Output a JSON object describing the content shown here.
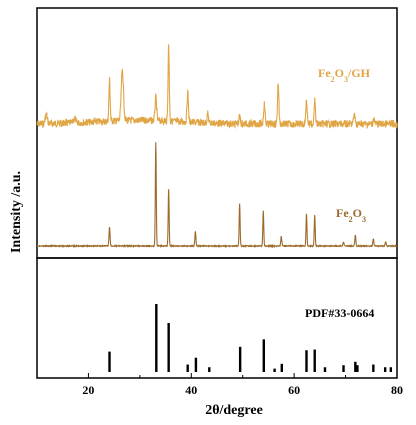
{
  "chart_data": {
    "type": "line",
    "xlabel": "2θ/degree",
    "ylabel": "Intensity /a.u.",
    "xlim": [
      10,
      80
    ],
    "xticks": [
      "20",
      "40",
      "60",
      "80"
    ],
    "grid": false,
    "series": [
      {
        "name": "Fe2O3/GH",
        "label_main": "Fe",
        "label_sub1": "2",
        "label_mid": "O",
        "label_sub2": "3",
        "label_tail": "/GH",
        "color": "#E0A545",
        "baseline": 0.04,
        "noise": 0.9,
        "peaks": [
          {
            "x": 11.8,
            "h": 0.1,
            "w": 0.2
          },
          {
            "x": 17.3,
            "h": 0.05,
            "w": 0.2
          },
          {
            "x": 24.1,
            "h": 0.46,
            "w": 0.12
          },
          {
            "x": 26.6,
            "h": 0.56,
            "w": 0.22
          },
          {
            "x": 33.1,
            "h": 0.26,
            "w": 0.15
          },
          {
            "x": 35.6,
            "h": 0.84,
            "w": 0.12
          },
          {
            "x": 39.3,
            "h": 0.33,
            "w": 0.14
          },
          {
            "x": 43.2,
            "h": 0.1,
            "w": 0.14
          },
          {
            "x": 49.4,
            "h": 0.08,
            "w": 0.14
          },
          {
            "x": 54.2,
            "h": 0.22,
            "w": 0.14
          },
          {
            "x": 56.9,
            "h": 0.46,
            "w": 0.13
          },
          {
            "x": 62.4,
            "h": 0.26,
            "w": 0.14
          },
          {
            "x": 64.0,
            "h": 0.27,
            "w": 0.13
          },
          {
            "x": 71.7,
            "h": 0.11,
            "w": 0.14
          },
          {
            "x": 75.5,
            "h": 0.06,
            "w": 0.14
          }
        ]
      },
      {
        "name": "Fe2O3",
        "label_main": "Fe",
        "label_sub1": "2",
        "label_mid": "O",
        "label_sub2": "3",
        "label_tail": "",
        "color": "#9B6A2A",
        "baseline": 0.0,
        "noise": 0.35,
        "peaks": [
          {
            "x": 24.1,
            "h": 0.18,
            "w": 0.1
          },
          {
            "x": 33.1,
            "h": 1.0,
            "w": 0.09
          },
          {
            "x": 35.6,
            "h": 0.55,
            "w": 0.09
          },
          {
            "x": 40.8,
            "h": 0.14,
            "w": 0.1
          },
          {
            "x": 49.4,
            "h": 0.41,
            "w": 0.09
          },
          {
            "x": 54.0,
            "h": 0.34,
            "w": 0.09
          },
          {
            "x": 57.5,
            "h": 0.09,
            "w": 0.1
          },
          {
            "x": 62.4,
            "h": 0.31,
            "w": 0.09
          },
          {
            "x": 64.0,
            "h": 0.3,
            "w": 0.09
          },
          {
            "x": 69.6,
            "h": 0.04,
            "w": 0.1
          },
          {
            "x": 71.9,
            "h": 0.11,
            "w": 0.1
          },
          {
            "x": 75.4,
            "h": 0.07,
            "w": 0.1
          },
          {
            "x": 77.8,
            "h": 0.04,
            "w": 0.1
          }
        ]
      }
    ],
    "reference": {
      "name": "PDF#33-0664",
      "color": "#000000",
      "sticks": [
        {
          "x": 24.1,
          "h": 0.3
        },
        {
          "x": 33.2,
          "h": 1.0
        },
        {
          "x": 35.6,
          "h": 0.72
        },
        {
          "x": 39.3,
          "h": 0.11
        },
        {
          "x": 40.9,
          "h": 0.21
        },
        {
          "x": 43.5,
          "h": 0.07
        },
        {
          "x": 49.5,
          "h": 0.37
        },
        {
          "x": 54.1,
          "h": 0.48
        },
        {
          "x": 56.2,
          "h": 0.05
        },
        {
          "x": 57.6,
          "h": 0.12
        },
        {
          "x": 62.4,
          "h": 0.32
        },
        {
          "x": 64.0,
          "h": 0.33
        },
        {
          "x": 66.0,
          "h": 0.07
        },
        {
          "x": 69.6,
          "h": 0.1
        },
        {
          "x": 71.9,
          "h": 0.15
        },
        {
          "x": 72.3,
          "h": 0.1
        },
        {
          "x": 75.4,
          "h": 0.11
        },
        {
          "x": 77.7,
          "h": 0.07
        },
        {
          "x": 78.8,
          "h": 0.07
        }
      ]
    }
  }
}
